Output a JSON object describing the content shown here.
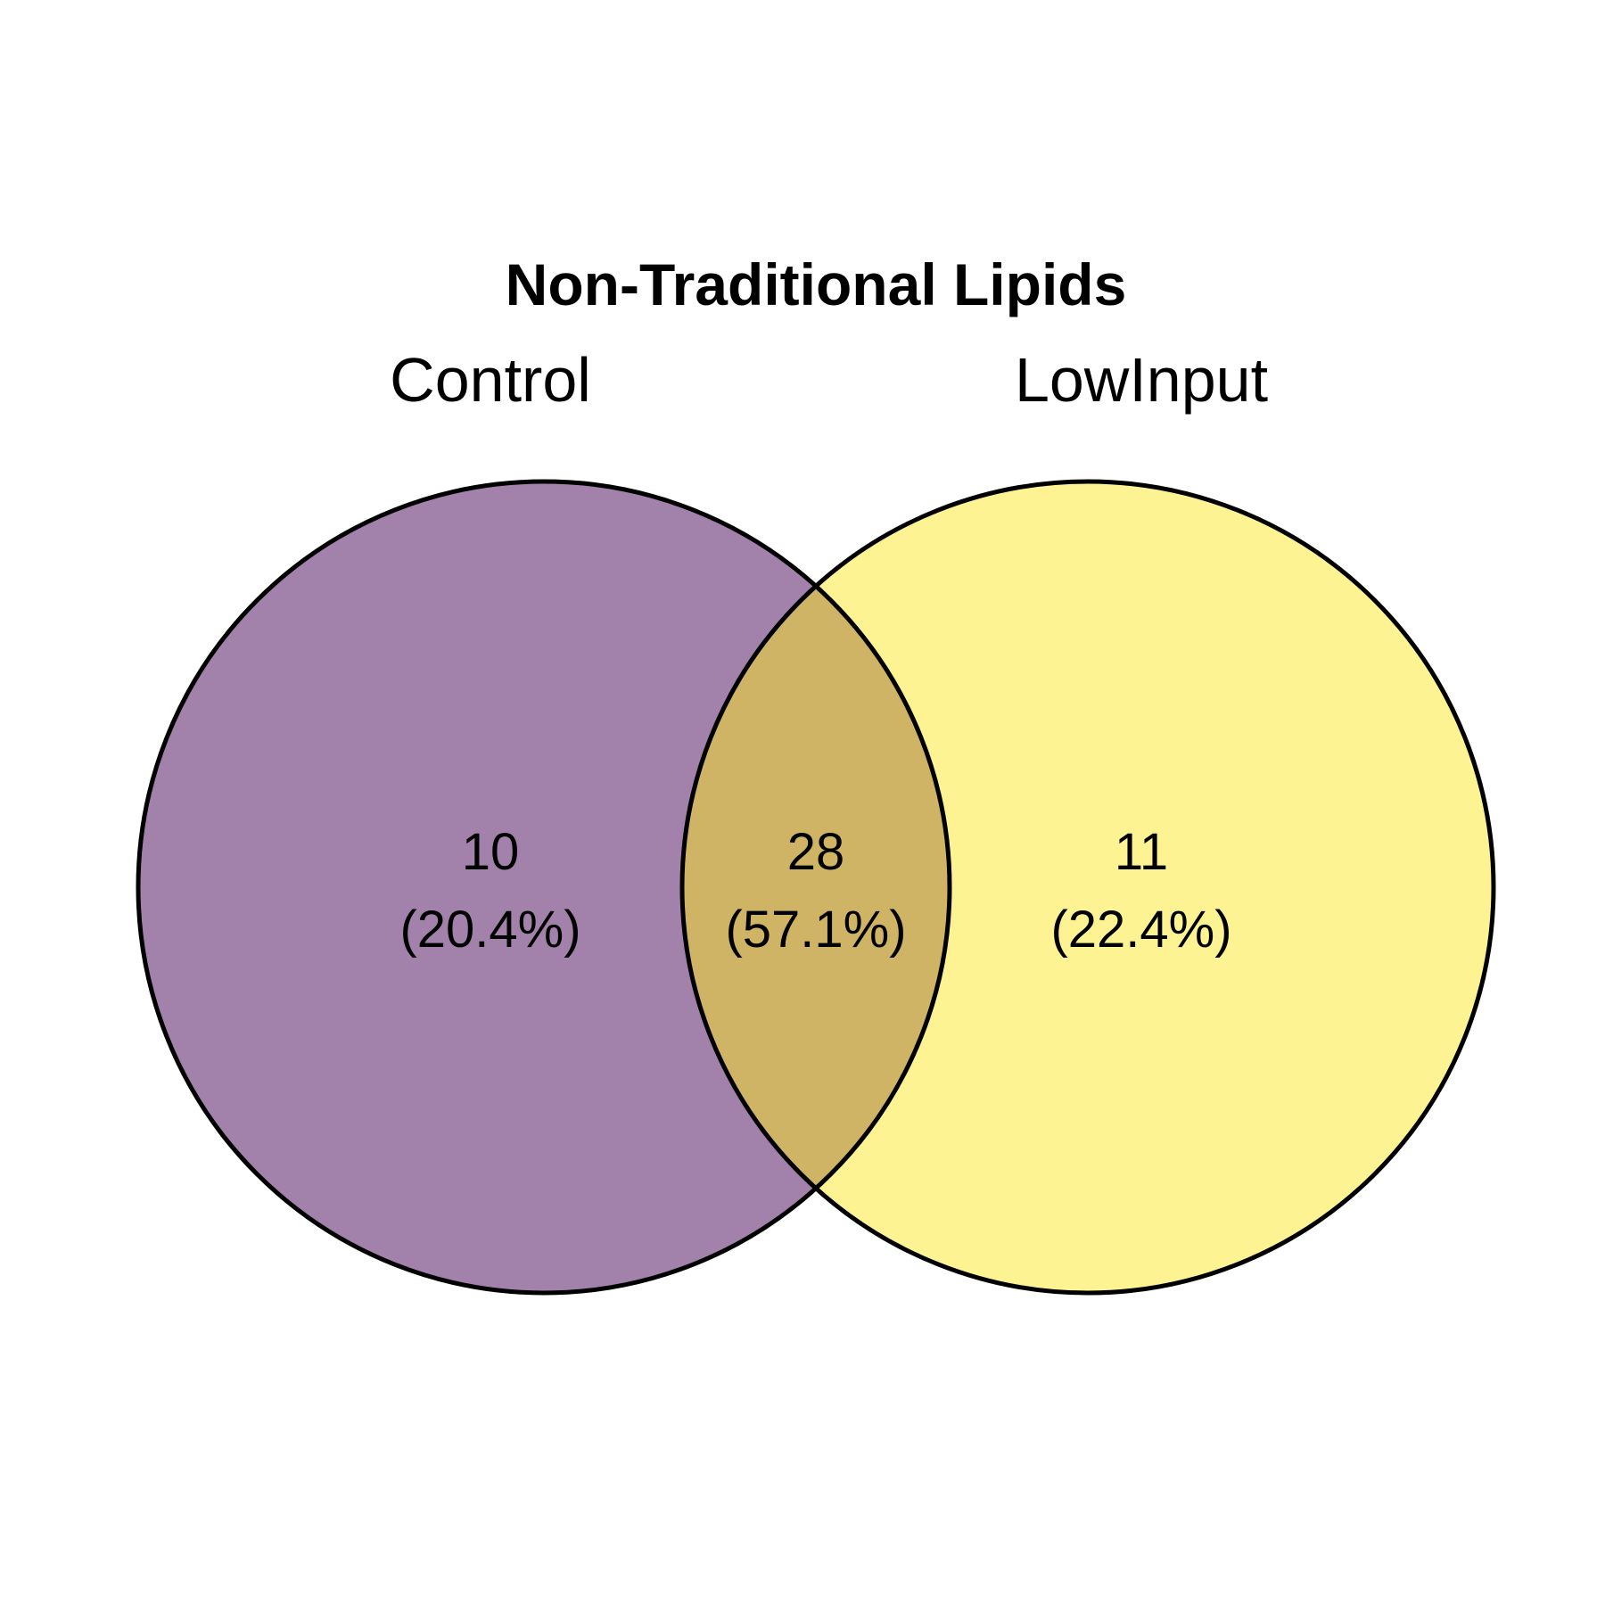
{
  "title": "Non-Traditional Lipids",
  "sets": [
    {
      "name": "Control",
      "color": "#a281aa"
    },
    {
      "name": "LowInput",
      "color": "#fdf393"
    }
  ],
  "intersection_color": "#cfb466",
  "regions": {
    "left": {
      "count": "10",
      "percent": "(20.4%)"
    },
    "overlap": {
      "count": "28",
      "percent": "(57.1%)"
    },
    "right": {
      "count": "11",
      "percent": "(22.4%)"
    }
  }
}
